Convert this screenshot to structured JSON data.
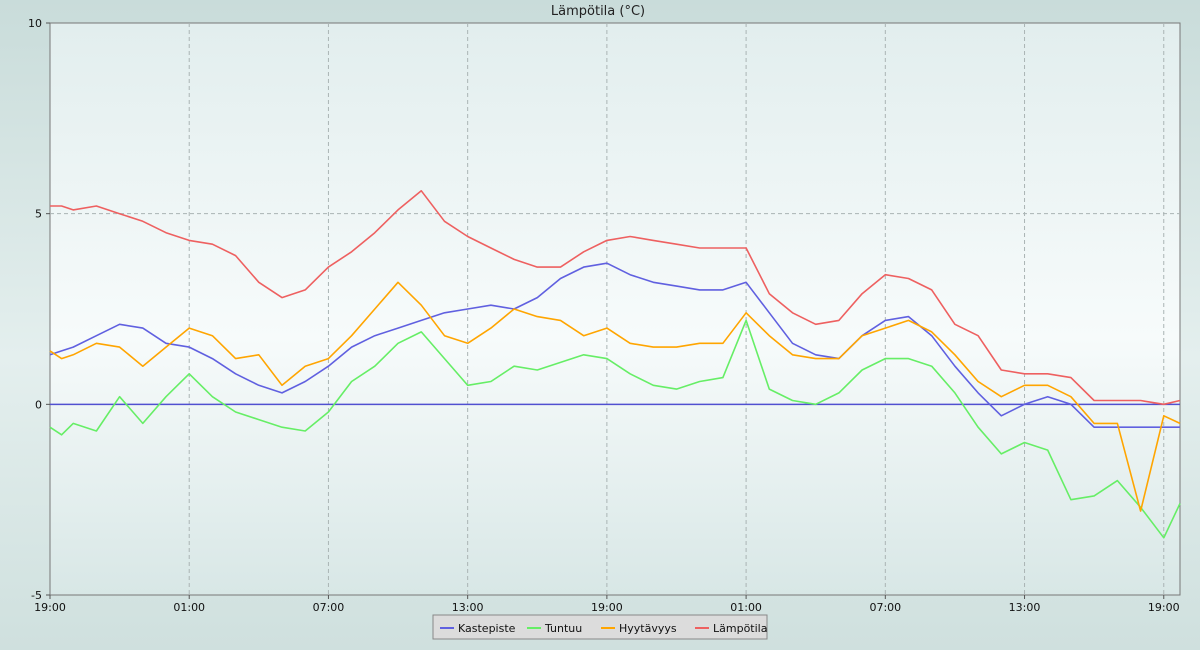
{
  "chart_data": {
    "type": "line",
    "title": "Lämpötila (°C)",
    "xlabel": "",
    "ylabel": "",
    "ylim": [
      -5,
      10
    ],
    "y_ticks": [
      -5,
      0,
      5,
      10
    ],
    "x_range_hours": [
      0,
      48.7
    ],
    "x_ticks": [
      {
        "h": 0,
        "label": "19:00"
      },
      {
        "h": 6,
        "label": "01:00"
      },
      {
        "h": 12,
        "label": "07:00"
      },
      {
        "h": 18,
        "label": "13:00"
      },
      {
        "h": 24,
        "label": "19:00"
      },
      {
        "h": 30,
        "label": "01:00"
      },
      {
        "h": 36,
        "label": "07:00"
      },
      {
        "h": 42,
        "label": "13:00"
      },
      {
        "h": 48,
        "label": "19:00"
      }
    ],
    "grid": true,
    "legend_position": "bottom-center",
    "zero_line": 0,
    "series": [
      {
        "name": "Kastepiste",
        "color": "#6060e0",
        "x": [
          0,
          0.5,
          1,
          2,
          3,
          4,
          5,
          6,
          7,
          8,
          9,
          10,
          11,
          12,
          13,
          14,
          15,
          16,
          17,
          18,
          19,
          20,
          21,
          22,
          23,
          24,
          25,
          26,
          27,
          28,
          29,
          30,
          31,
          32,
          33,
          34,
          35,
          36,
          37,
          38,
          39,
          40,
          41,
          42,
          43,
          44,
          45,
          46,
          47,
          48,
          48.7
        ],
        "y": [
          1.3,
          1.4,
          1.5,
          1.8,
          2.1,
          2.0,
          1.6,
          1.5,
          1.2,
          0.8,
          0.5,
          0.3,
          0.6,
          1.0,
          1.5,
          1.8,
          2.0,
          2.2,
          2.4,
          2.5,
          2.6,
          2.5,
          2.8,
          3.3,
          3.6,
          3.7,
          3.4,
          3.2,
          3.1,
          3.0,
          3.0,
          3.2,
          2.4,
          1.6,
          1.3,
          1.2,
          1.8,
          2.2,
          2.3,
          1.8,
          1.0,
          0.3,
          -0.3,
          0.0,
          0.2,
          0.0,
          -0.6,
          -0.6,
          -0.6,
          -0.6,
          -0.6
        ]
      },
      {
        "name": "Tuntuu",
        "color": "#66ee66",
        "x": [
          0,
          0.5,
          1,
          2,
          3,
          4,
          5,
          6,
          7,
          8,
          9,
          10,
          11,
          12,
          13,
          14,
          15,
          16,
          17,
          18,
          19,
          20,
          21,
          22,
          23,
          24,
          25,
          26,
          27,
          28,
          29,
          30,
          31,
          32,
          33,
          34,
          35,
          36,
          37,
          38,
          39,
          40,
          41,
          42,
          43,
          44,
          45,
          46,
          47,
          48,
          48.7
        ],
        "y": [
          -0.6,
          -0.8,
          -0.5,
          -0.7,
          0.2,
          -0.5,
          0.2,
          0.8,
          0.2,
          -0.2,
          -0.4,
          -0.6,
          -0.7,
          -0.2,
          0.6,
          1.0,
          1.6,
          1.9,
          1.2,
          0.5,
          0.6,
          1.0,
          0.9,
          1.1,
          1.3,
          1.2,
          0.8,
          0.5,
          0.4,
          0.6,
          0.7,
          2.2,
          0.4,
          0.1,
          0.0,
          0.3,
          0.9,
          1.2,
          1.2,
          1.0,
          0.3,
          -0.6,
          -1.3,
          -1.0,
          -1.2,
          -2.5,
          -2.4,
          -2.0,
          -2.7,
          -3.5,
          -2.6
        ]
      },
      {
        "name": "Hyytävyys",
        "color": "#ffa500",
        "x": [
          0,
          0.5,
          1,
          2,
          3,
          4,
          5,
          6,
          7,
          8,
          9,
          10,
          11,
          12,
          13,
          14,
          15,
          16,
          17,
          18,
          19,
          20,
          21,
          22,
          23,
          24,
          25,
          26,
          27,
          28,
          29,
          30,
          31,
          32,
          33,
          34,
          35,
          36,
          37,
          38,
          39,
          40,
          41,
          42,
          43,
          44,
          45,
          46,
          47,
          48,
          48.7
        ],
        "y": [
          1.4,
          1.2,
          1.3,
          1.6,
          1.5,
          1.0,
          1.5,
          2.0,
          1.8,
          1.2,
          1.3,
          0.5,
          1.0,
          1.2,
          1.8,
          2.5,
          3.2,
          2.6,
          1.8,
          1.6,
          2.0,
          2.5,
          2.3,
          2.2,
          1.8,
          2.0,
          1.6,
          1.5,
          1.5,
          1.6,
          1.6,
          2.4,
          1.8,
          1.3,
          1.2,
          1.2,
          1.8,
          2.0,
          2.2,
          1.9,
          1.3,
          0.6,
          0.2,
          0.5,
          0.5,
          0.2,
          -0.5,
          -0.5,
          -2.8,
          -0.3,
          -0.5
        ]
      },
      {
        "name": "Lämpötila",
        "color": "#ee6060",
        "x": [
          0,
          0.5,
          1,
          2,
          3,
          4,
          5,
          6,
          7,
          8,
          9,
          10,
          11,
          12,
          13,
          14,
          15,
          16,
          17,
          18,
          19,
          20,
          21,
          22,
          23,
          24,
          25,
          26,
          27,
          28,
          29,
          30,
          31,
          32,
          33,
          34,
          35,
          36,
          37,
          38,
          39,
          40,
          41,
          42,
          43,
          44,
          45,
          46,
          47,
          48,
          48.7
        ],
        "y": [
          5.2,
          5.2,
          5.1,
          5.2,
          5.0,
          4.8,
          4.5,
          4.3,
          4.2,
          3.9,
          3.2,
          2.8,
          3.0,
          3.6,
          4.0,
          4.5,
          5.1,
          5.6,
          4.8,
          4.4,
          4.1,
          3.8,
          3.6,
          3.6,
          4.0,
          4.3,
          4.4,
          4.3,
          4.2,
          4.1,
          4.1,
          4.1,
          2.9,
          2.4,
          2.1,
          2.2,
          2.9,
          3.4,
          3.3,
          3.0,
          2.1,
          1.8,
          0.9,
          0.8,
          0.8,
          0.7,
          0.1,
          0.1,
          0.1,
          0.0,
          0.1
        ]
      }
    ]
  }
}
